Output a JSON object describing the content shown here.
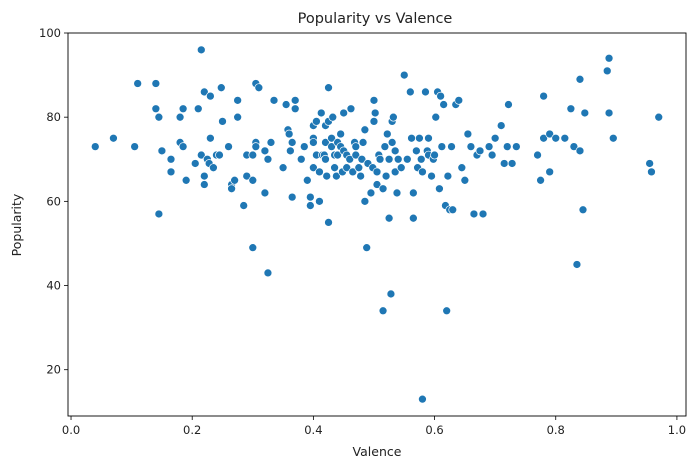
{
  "chart_data": {
    "type": "scatter",
    "title": "Popularity vs Valence",
    "xlabel": "Valence",
    "ylabel": "Popularity",
    "xlim": [
      -0.005,
      1.015
    ],
    "ylim": [
      9,
      100
    ],
    "xticks": [
      0.0,
      0.2,
      0.4,
      0.6,
      0.8,
      1.0
    ],
    "xtick_labels": [
      "0.0",
      "0.2",
      "0.4",
      "0.6",
      "0.8",
      "1.0"
    ],
    "yticks": [
      20,
      40,
      60,
      80,
      100
    ],
    "ytick_labels": [
      "20",
      "40",
      "60",
      "80",
      "100"
    ],
    "grid": false,
    "legend": "none",
    "point_color": "#1f77b4",
    "series": [
      {
        "points": [
          [
            0.04,
            73
          ],
          [
            0.07,
            75
          ],
          [
            0.105,
            73
          ],
          [
            0.11,
            88
          ],
          [
            0.14,
            88
          ],
          [
            0.14,
            82
          ],
          [
            0.145,
            57
          ],
          [
            0.145,
            80
          ],
          [
            0.15,
            72
          ],
          [
            0.165,
            67
          ],
          [
            0.165,
            70
          ],
          [
            0.18,
            74
          ],
          [
            0.18,
            80
          ],
          [
            0.185,
            73
          ],
          [
            0.185,
            82
          ],
          [
            0.19,
            65
          ],
          [
            0.205,
            69
          ],
          [
            0.21,
            82
          ],
          [
            0.215,
            96
          ],
          [
            0.215,
            71
          ],
          [
            0.22,
            66
          ],
          [
            0.22,
            64
          ],
          [
            0.22,
            86
          ],
          [
            0.225,
            70
          ],
          [
            0.228,
            69
          ],
          [
            0.23,
            75
          ],
          [
            0.23,
            85
          ],
          [
            0.235,
            68
          ],
          [
            0.24,
            71
          ],
          [
            0.245,
            71
          ],
          [
            0.248,
            87
          ],
          [
            0.25,
            79
          ],
          [
            0.26,
            73
          ],
          [
            0.265,
            64
          ],
          [
            0.265,
            63
          ],
          [
            0.27,
            65
          ],
          [
            0.275,
            80
          ],
          [
            0.275,
            84
          ],
          [
            0.285,
            59
          ],
          [
            0.29,
            66
          ],
          [
            0.29,
            71
          ],
          [
            0.3,
            49
          ],
          [
            0.3,
            71
          ],
          [
            0.3,
            65
          ],
          [
            0.305,
            88
          ],
          [
            0.305,
            74
          ],
          [
            0.305,
            73
          ],
          [
            0.31,
            87
          ],
          [
            0.32,
            62
          ],
          [
            0.32,
            72
          ],
          [
            0.325,
            43
          ],
          [
            0.325,
            70
          ],
          [
            0.33,
            74
          ],
          [
            0.335,
            84
          ],
          [
            0.35,
            68
          ],
          [
            0.355,
            83
          ],
          [
            0.358,
            77
          ],
          [
            0.36,
            76
          ],
          [
            0.362,
            72
          ],
          [
            0.365,
            74
          ],
          [
            0.365,
            61
          ],
          [
            0.37,
            82
          ],
          [
            0.37,
            84
          ],
          [
            0.38,
            70
          ],
          [
            0.385,
            73
          ],
          [
            0.39,
            65
          ],
          [
            0.395,
            59
          ],
          [
            0.395,
            61
          ],
          [
            0.4,
            78
          ],
          [
            0.4,
            75
          ],
          [
            0.4,
            68
          ],
          [
            0.4,
            74
          ],
          [
            0.405,
            79
          ],
          [
            0.405,
            71
          ],
          [
            0.41,
            67
          ],
          [
            0.41,
            60
          ],
          [
            0.413,
            81
          ],
          [
            0.415,
            71
          ],
          [
            0.418,
            71
          ],
          [
            0.42,
            78
          ],
          [
            0.42,
            74
          ],
          [
            0.42,
            70
          ],
          [
            0.422,
            66
          ],
          [
            0.425,
            87
          ],
          [
            0.425,
            55
          ],
          [
            0.425,
            79
          ],
          [
            0.43,
            73
          ],
          [
            0.43,
            75
          ],
          [
            0.432,
            80
          ],
          [
            0.435,
            71
          ],
          [
            0.435,
            68
          ],
          [
            0.438,
            66
          ],
          [
            0.44,
            71
          ],
          [
            0.44,
            74
          ],
          [
            0.445,
            76
          ],
          [
            0.445,
            73
          ],
          [
            0.448,
            67
          ],
          [
            0.45,
            72
          ],
          [
            0.45,
            81
          ],
          [
            0.455,
            71
          ],
          [
            0.455,
            68
          ],
          [
            0.46,
            70
          ],
          [
            0.462,
            82
          ],
          [
            0.465,
            67
          ],
          [
            0.468,
            74
          ],
          [
            0.47,
            73
          ],
          [
            0.47,
            71
          ],
          [
            0.475,
            68
          ],
          [
            0.478,
            66
          ],
          [
            0.48,
            70
          ],
          [
            0.482,
            74
          ],
          [
            0.485,
            77
          ],
          [
            0.485,
            60
          ],
          [
            0.488,
            49
          ],
          [
            0.49,
            69
          ],
          [
            0.495,
            62
          ],
          [
            0.498,
            68
          ],
          [
            0.5,
            79
          ],
          [
            0.5,
            84
          ],
          [
            0.502,
            81
          ],
          [
            0.505,
            67
          ],
          [
            0.505,
            64
          ],
          [
            0.508,
            71
          ],
          [
            0.51,
            70
          ],
          [
            0.515,
            63
          ],
          [
            0.515,
            34
          ],
          [
            0.518,
            73
          ],
          [
            0.52,
            66
          ],
          [
            0.522,
            76
          ],
          [
            0.525,
            56
          ],
          [
            0.525,
            70
          ],
          [
            0.528,
            38
          ],
          [
            0.53,
            79
          ],
          [
            0.53,
            74
          ],
          [
            0.532,
            80
          ],
          [
            0.535,
            72
          ],
          [
            0.535,
            67
          ],
          [
            0.538,
            62
          ],
          [
            0.54,
            70
          ],
          [
            0.545,
            68
          ],
          [
            0.55,
            90
          ],
          [
            0.555,
            70
          ],
          [
            0.56,
            86
          ],
          [
            0.562,
            75
          ],
          [
            0.565,
            56
          ],
          [
            0.565,
            62
          ],
          [
            0.57,
            72
          ],
          [
            0.572,
            68
          ],
          [
            0.575,
            75
          ],
          [
            0.578,
            70
          ],
          [
            0.58,
            13
          ],
          [
            0.58,
            67
          ],
          [
            0.585,
            86
          ],
          [
            0.588,
            72
          ],
          [
            0.59,
            75
          ],
          [
            0.59,
            71
          ],
          [
            0.595,
            66
          ],
          [
            0.598,
            70
          ],
          [
            0.6,
            71
          ],
          [
            0.602,
            80
          ],
          [
            0.605,
            86
          ],
          [
            0.608,
            63
          ],
          [
            0.61,
            85
          ],
          [
            0.612,
            73
          ],
          [
            0.615,
            83
          ],
          [
            0.618,
            59
          ],
          [
            0.62,
            34
          ],
          [
            0.622,
            66
          ],
          [
            0.625,
            58
          ],
          [
            0.628,
            73
          ],
          [
            0.63,
            58
          ],
          [
            0.635,
            83
          ],
          [
            0.64,
            84
          ],
          [
            0.645,
            68
          ],
          [
            0.65,
            65
          ],
          [
            0.655,
            76
          ],
          [
            0.66,
            73
          ],
          [
            0.665,
            57
          ],
          [
            0.67,
            71
          ],
          [
            0.675,
            72
          ],
          [
            0.68,
            57
          ],
          [
            0.69,
            73
          ],
          [
            0.695,
            71
          ],
          [
            0.7,
            75
          ],
          [
            0.71,
            78
          ],
          [
            0.715,
            69
          ],
          [
            0.72,
            73
          ],
          [
            0.722,
            83
          ],
          [
            0.728,
            69
          ],
          [
            0.735,
            73
          ],
          [
            0.77,
            71
          ],
          [
            0.775,
            65
          ],
          [
            0.78,
            75
          ],
          [
            0.78,
            85
          ],
          [
            0.79,
            76
          ],
          [
            0.79,
            67
          ],
          [
            0.8,
            75
          ],
          [
            0.815,
            75
          ],
          [
            0.825,
            82
          ],
          [
            0.83,
            73
          ],
          [
            0.835,
            45
          ],
          [
            0.84,
            89
          ],
          [
            0.84,
            72
          ],
          [
            0.845,
            58
          ],
          [
            0.848,
            81
          ],
          [
            0.885,
            91
          ],
          [
            0.888,
            81
          ],
          [
            0.888,
            94
          ],
          [
            0.895,
            75
          ],
          [
            0.955,
            69
          ],
          [
            0.958,
            67
          ],
          [
            0.97,
            80
          ]
        ]
      }
    ]
  }
}
